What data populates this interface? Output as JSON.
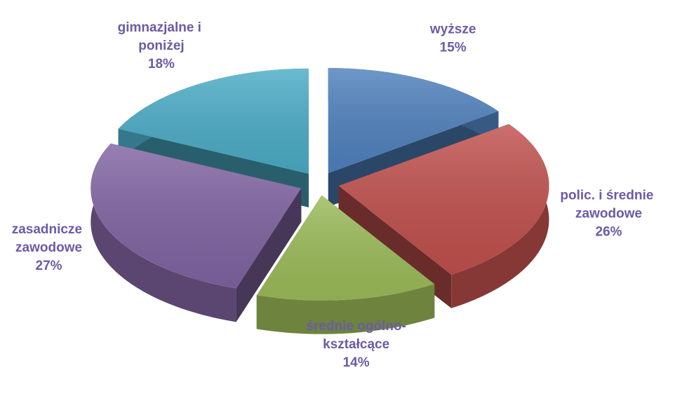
{
  "chart_data": {
    "type": "pie3d",
    "categories": [
      "wyższe",
      "polic. i średnie zawodowe",
      "średnie ogólno-kształcące",
      "zasadnicze zawodowe",
      "gimnazjalne i poniżej"
    ],
    "values": [
      15,
      26,
      14,
      27,
      18
    ],
    "value_labels": [
      "15%",
      "26%",
      "14%",
      "27%",
      "18%"
    ],
    "colors": [
      "#4f81bd",
      "#c0504d",
      "#9bbb59",
      "#8064a2",
      "#4bacc6"
    ]
  }
}
